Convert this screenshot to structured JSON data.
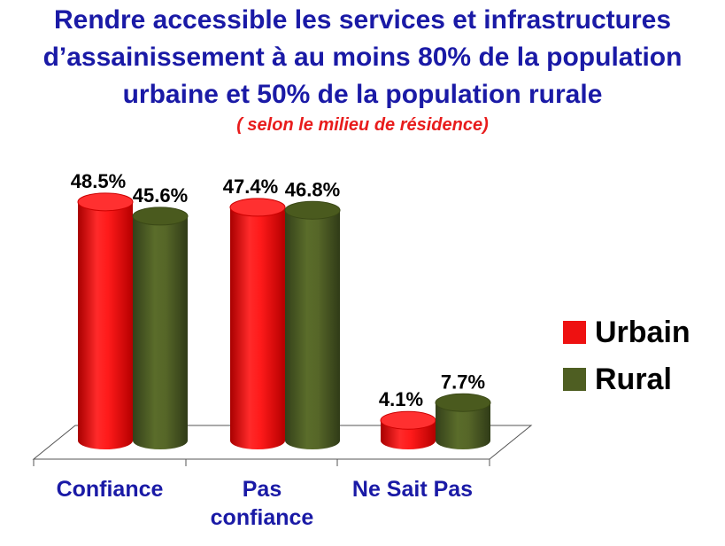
{
  "title_lines": [
    "Rendre accessible les services et infrastructures",
    "d’assainissement à au moins 80% de la population",
    "urbaine et 50% de la population rurale"
  ],
  "subtitle": "( selon le milieu de résidence)",
  "colors": {
    "title": "#1a1aa6",
    "subtitle": "#e81c1c",
    "urbain": "#ee1111",
    "rural": "#4e5e22"
  },
  "chart_data": {
    "type": "bar",
    "categories": [
      "Confiance",
      "Pas\nconfiance",
      "Ne Sait Pas"
    ],
    "category_lines": [
      [
        "Confiance"
      ],
      [
        "Pas",
        "confiance"
      ],
      [
        "Ne Sait Pas"
      ]
    ],
    "series": [
      {
        "name": "Urbain",
        "values": [
          48.5,
          47.4,
          4.1
        ],
        "labels": [
          "48.5%",
          "47.4%",
          "4.1%"
        ]
      },
      {
        "name": "Rural",
        "values": [
          45.6,
          46.8,
          7.7
        ],
        "labels": [
          "45.6%",
          "46.8%",
          "7.7%"
        ]
      }
    ],
    "style": "3d-cylinder",
    "legend_position": "right",
    "grid": false,
    "ylim": [
      0,
      50
    ]
  }
}
